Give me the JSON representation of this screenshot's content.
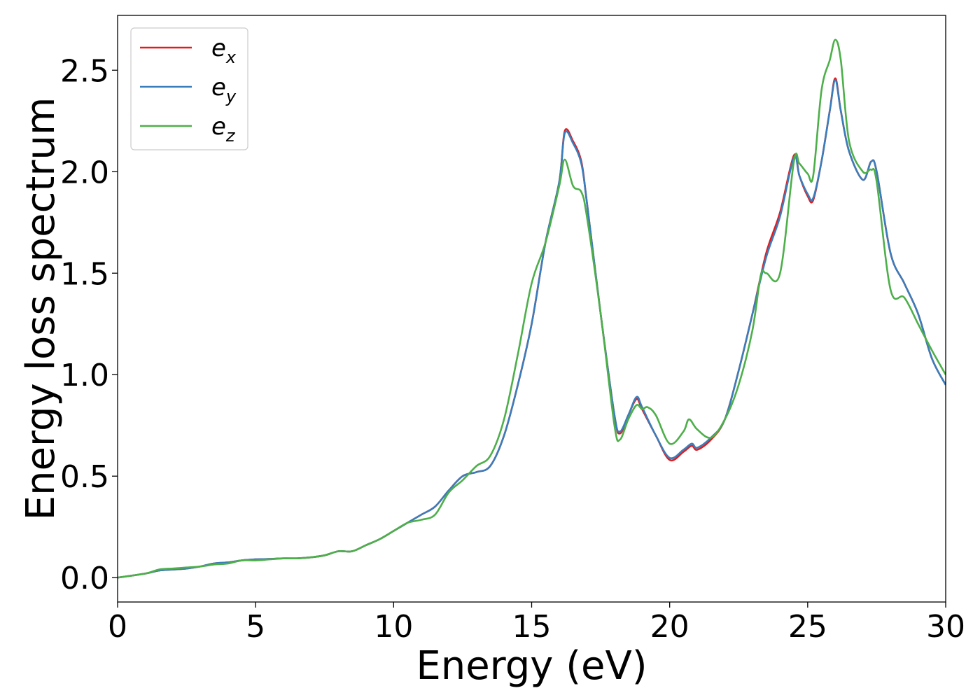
{
  "chart_data": {
    "type": "line",
    "title": "",
    "xlabel": "Energy (eV)",
    "ylabel": "Energy loss spectrum",
    "xlim": [
      0,
      30
    ],
    "ylim": [
      -0.12,
      2.77
    ],
    "xticks": [
      0,
      5,
      10,
      15,
      20,
      25,
      30
    ],
    "xtick_labels": [
      "0",
      "5",
      "10",
      "15",
      "20",
      "25",
      "30"
    ],
    "yticks": [
      0.0,
      0.5,
      1.0,
      1.5,
      2.0,
      2.5
    ],
    "ytick_labels": [
      "0.0",
      "0.5",
      "1.0",
      "1.5",
      "2.0",
      "2.5"
    ],
    "grid": false,
    "legend_position": "top-left",
    "series": [
      {
        "name": "e_x",
        "legend_base": "e",
        "legend_sub": "x",
        "color": "#e41a1c",
        "x": [
          0,
          1,
          1.5,
          2,
          2.5,
          3,
          3.5,
          4,
          4.5,
          5,
          5.5,
          6,
          6.5,
          7,
          7.5,
          8,
          8.5,
          9,
          9.5,
          10,
          10.5,
          11,
          11.5,
          12,
          12.5,
          13,
          13.5,
          14,
          14.5,
          15,
          15.5,
          16,
          16.2,
          16.5,
          16.8,
          17,
          17.5,
          18,
          18.2,
          18.5,
          18.8,
          19,
          19.5,
          20,
          20.5,
          20.8,
          21,
          21.5,
          22,
          22.5,
          23,
          23.5,
          24,
          24.5,
          24.7,
          25,
          25.2,
          25.5,
          25.8,
          26,
          26.2,
          26.5,
          27,
          27.3,
          27.5,
          28,
          28.5,
          29,
          29.5,
          30
        ],
        "y": [
          0.0,
          0.02,
          0.035,
          0.04,
          0.045,
          0.055,
          0.07,
          0.075,
          0.085,
          0.09,
          0.092,
          0.095,
          0.095,
          0.1,
          0.11,
          0.13,
          0.13,
          0.16,
          0.19,
          0.23,
          0.27,
          0.31,
          0.35,
          0.43,
          0.5,
          0.52,
          0.55,
          0.7,
          0.95,
          1.25,
          1.65,
          1.95,
          2.2,
          2.15,
          2.05,
          1.85,
          1.3,
          0.8,
          0.71,
          0.8,
          0.88,
          0.83,
          0.7,
          0.58,
          0.62,
          0.65,
          0.63,
          0.68,
          0.78,
          1.02,
          1.3,
          1.6,
          1.8,
          2.08,
          1.98,
          1.88,
          1.86,
          2.05,
          2.3,
          2.46,
          2.3,
          2.1,
          1.96,
          2.05,
          2.0,
          1.6,
          1.45,
          1.3,
          1.08,
          0.95
        ]
      },
      {
        "name": "e_y",
        "legend_base": "e",
        "legend_sub": "y",
        "color": "#3a7dbb",
        "x": [
          0,
          1,
          1.5,
          2,
          2.5,
          3,
          3.5,
          4,
          4.5,
          5,
          5.5,
          6,
          6.5,
          7,
          7.5,
          8,
          8.5,
          9,
          9.5,
          10,
          10.5,
          11,
          11.5,
          12,
          12.5,
          13,
          13.5,
          14,
          14.5,
          15,
          15.5,
          16,
          16.2,
          16.5,
          16.8,
          17,
          17.5,
          18,
          18.2,
          18.5,
          18.8,
          19,
          19.5,
          20,
          20.5,
          20.8,
          21,
          21.5,
          22,
          22.5,
          23,
          23.5,
          24,
          24.5,
          24.7,
          25,
          25.2,
          25.5,
          25.8,
          26,
          26.2,
          26.5,
          27,
          27.3,
          27.5,
          28,
          28.5,
          29,
          29.5,
          30
        ],
        "y": [
          0.0,
          0.02,
          0.035,
          0.04,
          0.045,
          0.055,
          0.07,
          0.075,
          0.085,
          0.09,
          0.092,
          0.095,
          0.095,
          0.1,
          0.11,
          0.13,
          0.13,
          0.16,
          0.19,
          0.23,
          0.27,
          0.31,
          0.35,
          0.43,
          0.5,
          0.52,
          0.55,
          0.7,
          0.95,
          1.25,
          1.65,
          1.95,
          2.19,
          2.14,
          2.04,
          1.85,
          1.3,
          0.8,
          0.72,
          0.8,
          0.89,
          0.84,
          0.7,
          0.59,
          0.63,
          0.66,
          0.64,
          0.69,
          0.78,
          1.02,
          1.3,
          1.58,
          1.78,
          2.07,
          1.98,
          1.89,
          1.87,
          2.05,
          2.3,
          2.45,
          2.3,
          2.1,
          1.96,
          2.05,
          2.0,
          1.6,
          1.45,
          1.3,
          1.08,
          0.95
        ]
      },
      {
        "name": "e_z",
        "legend_base": "e",
        "legend_sub": "z",
        "color": "#4daf4a",
        "x": [
          0,
          1,
          1.5,
          2,
          2.5,
          3,
          3.5,
          4,
          4.5,
          5,
          5.5,
          6,
          6.5,
          7,
          7.5,
          8,
          8.5,
          9,
          9.5,
          10,
          10.5,
          11,
          11.5,
          12,
          12.5,
          13,
          13.5,
          14,
          14.5,
          15,
          15.5,
          16,
          16.2,
          16.5,
          16.8,
          17,
          17.5,
          18,
          18.2,
          18.5,
          18.8,
          19,
          19.2,
          19.5,
          20,
          20.5,
          20.7,
          21,
          21.5,
          22,
          22.5,
          23,
          23.3,
          23.5,
          24,
          24.5,
          24.7,
          25,
          25.2,
          25.5,
          25.8,
          26,
          26.2,
          26.5,
          27,
          27.3,
          27.5,
          28,
          28.5,
          29,
          29.5,
          30
        ],
        "y": [
          0.0,
          0.02,
          0.04,
          0.045,
          0.05,
          0.055,
          0.065,
          0.07,
          0.085,
          0.085,
          0.09,
          0.095,
          0.095,
          0.1,
          0.11,
          0.13,
          0.13,
          0.16,
          0.19,
          0.23,
          0.27,
          0.285,
          0.31,
          0.42,
          0.48,
          0.55,
          0.6,
          0.78,
          1.1,
          1.45,
          1.65,
          1.93,
          2.06,
          1.93,
          1.9,
          1.78,
          1.3,
          0.75,
          0.68,
          0.78,
          0.85,
          0.83,
          0.84,
          0.8,
          0.66,
          0.72,
          0.78,
          0.73,
          0.69,
          0.78,
          0.95,
          1.22,
          1.49,
          1.5,
          1.5,
          2.05,
          2.04,
          1.99,
          1.98,
          2.4,
          2.55,
          2.65,
          2.55,
          2.15,
          2.0,
          2.01,
          1.95,
          1.42,
          1.38,
          1.25,
          1.12,
          1.0
        ]
      }
    ]
  }
}
